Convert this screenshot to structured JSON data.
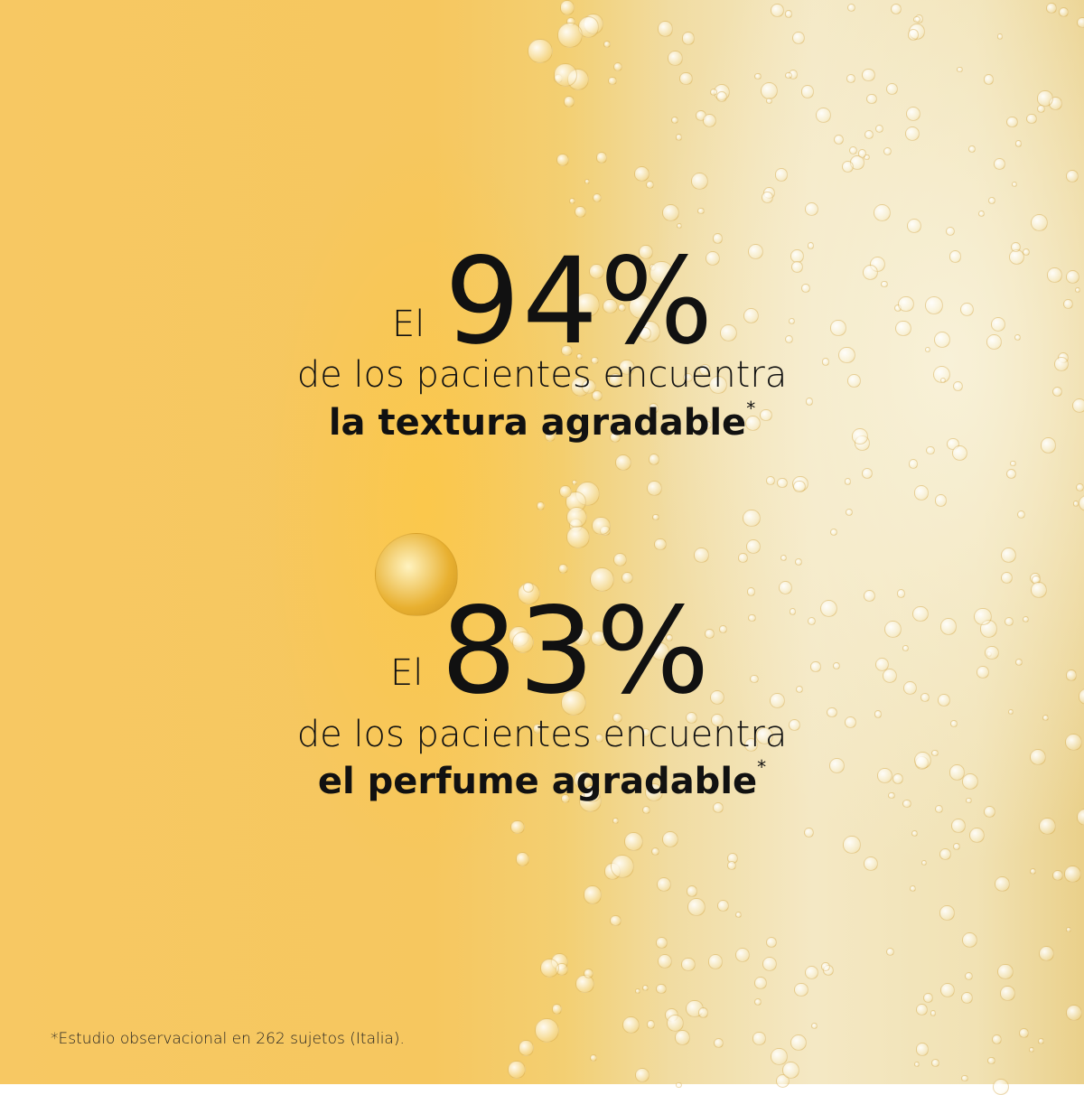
{
  "stats": [
    {
      "prefix": "El",
      "value": "94%",
      "line1": "de los pacientes encuentra",
      "line2": "la textura agradable",
      "mark": "*"
    },
    {
      "prefix": "El",
      "value": "83%",
      "line1": "de los pacientes encuentra",
      "line2": "el perfume agradable",
      "mark": "*"
    }
  ],
  "footnote": "*Estudio observacional en 262 sujetos (Italia).",
  "colors": {
    "background_left": "#f7c863",
    "background_right": "#f4e8c4",
    "text": "#111111"
  }
}
